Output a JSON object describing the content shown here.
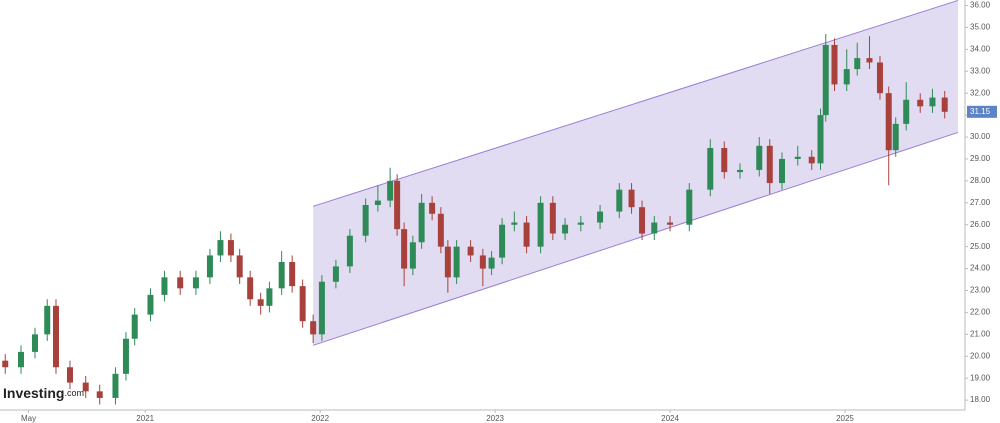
{
  "chart_data": {
    "type": "candlestick",
    "logo": "Investing",
    "logo_suffix": ".com",
    "x": [
      2020.2,
      2020.29,
      2020.37,
      2020.44,
      2020.49,
      2020.57,
      2020.66,
      2020.74,
      2020.83,
      2020.89,
      2020.94,
      2021.03,
      2021.11,
      2021.2,
      2021.29,
      2021.37,
      2021.43,
      2021.49,
      2021.54,
      2021.6,
      2021.66,
      2021.71,
      2021.78,
      2021.84,
      2021.9,
      2021.96,
      2022.01,
      2022.09,
      2022.17,
      2022.26,
      2022.33,
      2022.4,
      2022.44,
      2022.48,
      2022.53,
      2022.58,
      2022.64,
      2022.69,
      2022.73,
      2022.78,
      2022.86,
      2022.93,
      2022.98,
      2023.04,
      2023.11,
      2023.18,
      2023.26,
      2023.33,
      2023.4,
      2023.49,
      2023.6,
      2023.71,
      2023.78,
      2023.84,
      2023.91,
      2024.0,
      2024.11,
      2024.23,
      2024.31,
      2024.4,
      2024.51,
      2024.57,
      2024.64,
      2024.73,
      2024.81,
      2024.86,
      2024.89,
      2024.94,
      2025.01,
      2025.07,
      2025.14,
      2025.2,
      2025.25,
      2025.29,
      2025.35,
      2025.43,
      2025.5,
      2025.57
    ],
    "open": [
      19.8,
      19.5,
      20.2,
      21,
      22.3,
      19.5,
      18.8,
      18.4,
      18.1,
      19.2,
      20.8,
      21.9,
      22.8,
      23.6,
      23.1,
      23.6,
      24.6,
      25.3,
      24.6,
      23.6,
      22.6,
      22.3,
      23.1,
      24.3,
      23.2,
      21.6,
      21.0,
      23.4,
      24.1,
      25.5,
      26.9,
      27.1,
      28.0,
      25.8,
      24.0,
      25.2,
      27.0,
      26.5,
      25.0,
      23.6,
      25.0,
      24.6,
      24.0,
      24.5,
      26.0,
      26.1,
      25.0,
      27.0,
      25.6,
      26.0,
      26.1,
      26.6,
      27.6,
      26.8,
      25.6,
      26.1,
      26.0,
      27.6,
      29.5,
      28.4,
      28.5,
      29.6,
      27.9,
      29.0,
      29.1,
      28.8,
      31.0,
      34.2,
      32.4,
      33.1,
      33.6,
      33.4,
      32.0,
      29.4,
      30.6,
      31.7,
      31.4,
      31.8
    ],
    "high": [
      20.1,
      20.5,
      21.3,
      22.6,
      22.6,
      19.8,
      19.1,
      18.7,
      19.5,
      21.1,
      22.2,
      23.1,
      23.9,
      23.9,
      23.9,
      24.9,
      25.7,
      25.6,
      24.9,
      23.9,
      22.9,
      23.4,
      24.8,
      24.6,
      23.5,
      21.9,
      23.7,
      24.4,
      25.8,
      27.2,
      27.8,
      28.6,
      28.3,
      26.1,
      25.5,
      27.4,
      27.3,
      26.8,
      25.3,
      25.3,
      25.3,
      24.9,
      24.8,
      26.3,
      26.6,
      26.4,
      27.3,
      27.3,
      26.3,
      26.4,
      26.9,
      27.9,
      27.9,
      27.1,
      26.4,
      26.4,
      27.9,
      29.9,
      29.8,
      28.8,
      30.0,
      29.9,
      29.3,
      29.6,
      29.4,
      31.3,
      34.7,
      34.5,
      34.0,
      34.3,
      34.6,
      33.7,
      32.3,
      30.9,
      32.5,
      32.0,
      32.2,
      32.1
    ],
    "low": [
      19.2,
      19.2,
      19.9,
      20.7,
      19.2,
      18.5,
      18.1,
      17.8,
      17.8,
      18.9,
      20.5,
      21.6,
      22.5,
      22.8,
      22.8,
      23.3,
      24.3,
      24.3,
      23.3,
      22.3,
      21.9,
      22.0,
      22.8,
      22.9,
      21.3,
      20.6,
      20.7,
      23.1,
      23.8,
      25.2,
      26.6,
      26.8,
      25.5,
      23.2,
      23.7,
      24.9,
      26.2,
      24.7,
      22.9,
      23.3,
      24.3,
      23.2,
      23.7,
      24.2,
      25.7,
      24.7,
      24.7,
      25.3,
      25.3,
      25.7,
      25.8,
      26.3,
      26.5,
      25.3,
      25.3,
      25.7,
      25.7,
      27.3,
      28.1,
      28.1,
      28.2,
      27.4,
      27.6,
      28.7,
      28.5,
      28.5,
      30.7,
      32.1,
      32.1,
      32.8,
      33.1,
      31.7,
      27.8,
      29.1,
      30.3,
      31.1,
      31.1,
      30.85
    ],
    "close": [
      19.5,
      20.2,
      21,
      22.3,
      19.5,
      18.8,
      18.4,
      18.1,
      19.2,
      20.8,
      21.9,
      22.8,
      23.6,
      23.1,
      23.6,
      24.6,
      25.3,
      24.6,
      23.6,
      22.6,
      22.3,
      23.1,
      24.3,
      23.2,
      21.6,
      21.0,
      23.4,
      24.1,
      25.5,
      26.9,
      27.1,
      28.0,
      25.8,
      24.0,
      25.2,
      27.0,
      26.5,
      25.0,
      23.6,
      25.0,
      24.6,
      24.0,
      24.5,
      26.0,
      26.1,
      25.0,
      27.0,
      25.6,
      26.0,
      26.1,
      26.6,
      27.6,
      26.8,
      25.6,
      26.1,
      26.0,
      27.6,
      29.5,
      28.4,
      28.5,
      29.6,
      27.9,
      29.0,
      29.1,
      28.8,
      31.0,
      34.2,
      32.4,
      33.1,
      33.6,
      33.4,
      32.0,
      29.4,
      30.6,
      31.7,
      31.4,
      31.8,
      31.15
    ],
    "up_color": "#2e8b57",
    "down_color": "#a8413b",
    "channel": {
      "x": [
        2021.96,
        2025.646
      ],
      "upper": [
        26.84,
        36.23
      ],
      "lower": [
        20.5,
        30.21
      ],
      "color": "#9b7fd4",
      "fill": "#dcd6f0"
    },
    "last_price": 31.15,
    "last_price_color": "#5b83c6",
    "xlim": [
      2020.17,
      2025.686
    ],
    "xticks": [
      {
        "value": 2020.333,
        "label": "May"
      },
      2021,
      2022,
      2023,
      2024,
      2025
    ],
    "ylim": [
      17.55,
      36.25
    ],
    "yticks": [
      {
        "value": 18,
        "label": "18.00"
      },
      {
        "value": 19,
        "label": "19.00"
      },
      {
        "value": 20,
        "label": "20.00"
      },
      {
        "value": 21,
        "label": "21.00"
      },
      {
        "value": 22,
        "label": "22.00"
      },
      {
        "value": 23,
        "label": "23.00"
      },
      {
        "value": 24,
        "label": "24.00"
      },
      {
        "value": 25,
        "label": "25.00"
      },
      {
        "value": 26,
        "label": "26.00"
      },
      {
        "value": 27,
        "label": "27.00"
      },
      {
        "value": 28,
        "label": "28.00"
      },
      {
        "value": 29,
        "label": "29.00"
      },
      {
        "value": 30,
        "label": "30.00"
      },
      {
        "value": 31,
        "label": "31.00"
      },
      {
        "value": 32,
        "label": "32.00"
      },
      {
        "value": 33,
        "label": "33.00"
      },
      {
        "value": 34,
        "label": "34.00"
      },
      {
        "value": 35,
        "label": "35.00"
      },
      {
        "value": 36,
        "label": "36.00"
      }
    ]
  }
}
